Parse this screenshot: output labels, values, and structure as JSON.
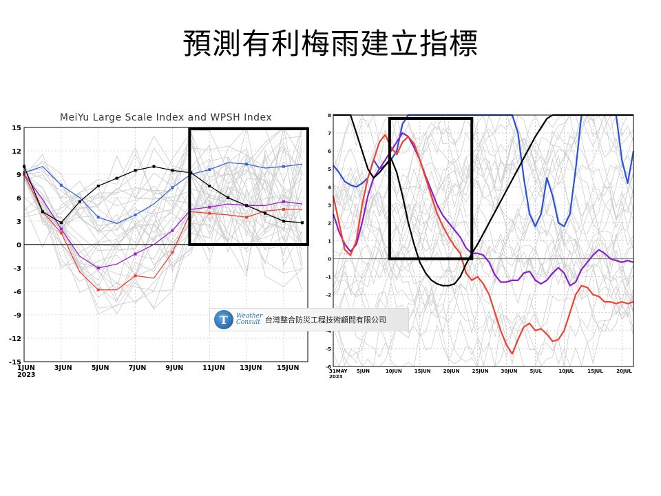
{
  "title": "預測有利梅雨建立指標",
  "logo": {
    "badge": "T",
    "word": "Weather Consult",
    "company": "台灣整合防災工程技術顧問有限公司"
  },
  "chart_data": [
    {
      "type": "line",
      "title": "MeiYu Large Scale Index and WPSH Index",
      "x": [
        1,
        2,
        3,
        4,
        5,
        6,
        7,
        8,
        9,
        10,
        11,
        12,
        13,
        14,
        15,
        16
      ],
      "x_tick_labels": [
        "1JUN\n2023",
        "3JUN",
        "5JUN",
        "7JUN",
        "9JUN",
        "11JUN",
        "13JUN",
        "15JUN"
      ],
      "x_tick_days": [
        1,
        3,
        5,
        7,
        9,
        11,
        13,
        15
      ],
      "ylim": [
        -15,
        15
      ],
      "y_ticks": [
        -15,
        -12,
        -9,
        -6,
        -3,
        0,
        3,
        6,
        9,
        12,
        15
      ],
      "series": [
        {
          "color": "#3a66d6",
          "values": [
            9.2,
            10.0,
            7.6,
            6.0,
            3.5,
            2.7,
            3.8,
            5.2,
            7.3,
            9.0,
            9.6,
            10.5,
            10.3,
            9.8,
            10.0,
            10.3
          ]
        },
        {
          "color": "#9b1fd0",
          "values": [
            9.0,
            5.8,
            2.0,
            -1.5,
            -3.0,
            -2.5,
            -1.2,
            0.0,
            1.8,
            4.5,
            4.8,
            5.2,
            5.0,
            5.0,
            5.5,
            5.2
          ]
        },
        {
          "color": "#f04030",
          "values": [
            9.0,
            4.2,
            1.5,
            -3.5,
            -5.8,
            -5.8,
            -4.0,
            -4.3,
            -1.0,
            4.2,
            4.0,
            3.8,
            3.5,
            4.3,
            4.5,
            4.5
          ]
        },
        {
          "color": "#000000",
          "values": [
            10.0,
            4.2,
            2.8,
            5.5,
            7.5,
            8.5,
            9.5,
            10.0,
            9.5,
            9.2,
            7.5,
            6.0,
            5.0,
            4.0,
            3.0,
            2.8
          ]
        }
      ],
      "highlight": {
        "x": [
          10,
          16
        ],
        "y": [
          0,
          15
        ]
      }
    },
    {
      "type": "line",
      "x_tick_labels": [
        "31MAY\n2023",
        "5JUN",
        "10JUN",
        "15JUN",
        "20JUN",
        "25JUN",
        "30JUN",
        "5JUL",
        "10JUL",
        "15JUL",
        "20JUL"
      ],
      "x_tick_days": [
        0,
        5,
        10,
        15,
        20,
        25,
        30,
        35,
        40,
        45,
        50
      ],
      "xlim": [
        0,
        52
      ],
      "ylim": [
        -6,
        8
      ],
      "y_ticks": [
        -6,
        -5,
        -4,
        -3,
        -2,
        -1,
        0,
        1,
        2,
        3,
        4,
        5,
        6,
        7,
        8
      ],
      "series": [
        {
          "color": "#2a4fd8",
          "x": [
            0,
            1,
            2,
            3,
            4,
            5,
            6,
            7,
            8,
            9,
            10,
            11,
            12,
            13,
            14,
            15,
            16,
            17,
            18,
            19,
            20,
            21,
            22,
            23,
            24,
            25,
            26,
            27,
            28,
            29,
            30,
            31,
            32,
            33,
            34,
            35,
            36,
            37,
            38,
            39,
            40,
            41,
            42,
            43,
            44,
            45,
            46,
            47,
            48,
            49,
            50,
            51,
            52
          ],
          "values": [
            5.2,
            4.8,
            4.3,
            4.1,
            4.0,
            4.2,
            4.5,
            5.5,
            5.0,
            5.2,
            5.5,
            6.0,
            7.5,
            8.5,
            8.5,
            8.5,
            8.5,
            8.5,
            8.5,
            8.5,
            8.5,
            8.5,
            8.5,
            8.5,
            8.5,
            8.5,
            8.5,
            8.5,
            8.5,
            8.5,
            8.5,
            8.5,
            7.0,
            4.5,
            2.5,
            1.8,
            2.5,
            4.5,
            3.5,
            2.0,
            1.8,
            2.5,
            5.0,
            8.0,
            8.5,
            8.5,
            8.5,
            8.5,
            8.5,
            8.5,
            5.5,
            4.2,
            6.0
          ]
        },
        {
          "color": "#8a1fc8",
          "x": [
            0,
            1,
            2,
            3,
            4,
            5,
            6,
            7,
            8,
            9,
            10,
            11,
            12,
            13,
            14,
            15,
            16,
            17,
            18,
            19,
            20,
            21,
            22,
            23,
            24,
            25,
            26,
            27,
            28,
            29,
            30,
            31,
            32,
            33,
            34,
            35,
            36,
            37,
            38,
            39,
            40,
            41,
            42,
            43,
            44,
            45,
            46,
            47,
            48,
            49,
            50,
            51,
            52
          ],
          "values": [
            2.5,
            1.5,
            0.8,
            0.4,
            0.8,
            2.0,
            3.5,
            4.5,
            5.0,
            5.5,
            6.0,
            6.5,
            7.0,
            6.8,
            6.2,
            5.5,
            4.6,
            3.8,
            3.0,
            2.4,
            2.0,
            1.6,
            1.2,
            0.6,
            0.3,
            0.3,
            0.2,
            -0.2,
            -0.9,
            -1.3,
            -1.3,
            -1.2,
            -1.2,
            -0.8,
            -0.7,
            -1.2,
            -1.4,
            -1.2,
            -0.8,
            -0.5,
            -0.8,
            -1.5,
            -1.3,
            -0.6,
            -0.2,
            0.2,
            0.5,
            0.3,
            0.0,
            -0.1,
            -0.2,
            -0.1,
            -0.2
          ]
        },
        {
          "color": "#f04030",
          "x": [
            0,
            1,
            2,
            3,
            4,
            5,
            6,
            7,
            8,
            9,
            10,
            11,
            12,
            13,
            14,
            15,
            16,
            17,
            18,
            19,
            20,
            21,
            22,
            23,
            24,
            25,
            26,
            27,
            28,
            29,
            30,
            31,
            32,
            33,
            34,
            35,
            36,
            37,
            38,
            39,
            40,
            41,
            42,
            43,
            44,
            45,
            46,
            47,
            48,
            49,
            50,
            51,
            52
          ],
          "values": [
            3.5,
            2.0,
            0.5,
            0.2,
            1.0,
            3.0,
            4.5,
            5.5,
            6.5,
            6.9,
            6.2,
            5.8,
            6.5,
            6.8,
            6.4,
            5.5,
            4.5,
            3.5,
            2.5,
            1.8,
            1.2,
            0.7,
            0.3,
            -0.8,
            -1.2,
            -1.0,
            -1.4,
            -2.0,
            -3.0,
            -4.0,
            -4.8,
            -5.3,
            -4.5,
            -3.8,
            -3.6,
            -4.0,
            -3.9,
            -4.2,
            -4.6,
            -4.5,
            -4.0,
            -3.0,
            -2.0,
            -1.5,
            -1.6,
            -2.0,
            -2.1,
            -2.4,
            -2.4,
            -2.5,
            -2.4,
            -2.5,
            -2.4
          ]
        },
        {
          "color": "#000000",
          "x": [
            0,
            1,
            2,
            3,
            4,
            5,
            6,
            7,
            8,
            9,
            10,
            11,
            12,
            13,
            14,
            15,
            16,
            17,
            18,
            19,
            20,
            21,
            22,
            23,
            24,
            25,
            26,
            27,
            28,
            29,
            30,
            31,
            32,
            33,
            34,
            35,
            36,
            37,
            38,
            39,
            40,
            41,
            42,
            43,
            44,
            45,
            46,
            47,
            48,
            49,
            50,
            51,
            52
          ],
          "values": [
            8.5,
            8.5,
            8.5,
            8.0,
            7.0,
            6.0,
            5.0,
            4.5,
            4.8,
            5.2,
            5.6,
            4.8,
            3.5,
            2.0,
            0.8,
            -0.2,
            -0.8,
            -1.2,
            -1.4,
            -1.5,
            -1.5,
            -1.4,
            -1.0,
            -0.3,
            0.3,
            0.8,
            1.4,
            2.0,
            2.6,
            3.2,
            3.8,
            4.4,
            5.0,
            5.6,
            6.2,
            6.8,
            7.3,
            7.8,
            8.0,
            8.5,
            8.5,
            8.5,
            8.5,
            8.5,
            8.5,
            8.5,
            8.5,
            8.5,
            8.5,
            8.5,
            8.5,
            8.5,
            8.5
          ]
        }
      ],
      "highlight": {
        "x": [
          10,
          24
        ],
        "y": [
          0,
          8
        ]
      }
    }
  ]
}
